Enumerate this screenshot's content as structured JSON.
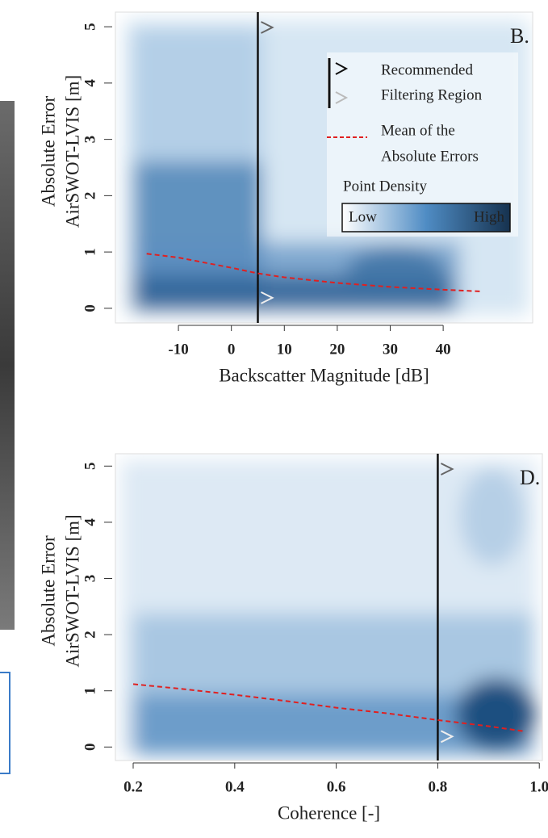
{
  "chart_data": [
    {
      "type": "density",
      "title": "B.",
      "xlabel": "Backscatter Magnitude [dB]",
      "ylabel": [
        "Absolute Error",
        "AirSWOT-LVIS [m]"
      ],
      "xlim": [
        -21.9,
        56.9
      ],
      "ylim": [
        -0.26,
        5.26
      ],
      "xticks": [
        -10,
        0,
        10,
        20,
        30,
        40
      ],
      "yticks": [
        0,
        1,
        2,
        3,
        4,
        5
      ],
      "threshold": 5,
      "mean_x": [
        -16,
        -10,
        0,
        5,
        10,
        20,
        30,
        40,
        47
      ],
      "mean_y": [
        0.97,
        0.9,
        0.72,
        0.62,
        0.55,
        0.45,
        0.38,
        0.33,
        0.3
      ],
      "mean_color": "#e02020",
      "legend": {
        "threshold_label": [
          "Recommended",
          "Filtering Region"
        ],
        "mean_label": [
          "Mean of the",
          "Absolute Errors"
        ],
        "density_title": "Point Density",
        "density_low": "Low",
        "density_high": "High"
      }
    },
    {
      "type": "density",
      "title": "D.",
      "xlabel": "Coherence [-]",
      "ylabel": [
        "Absolute Error",
        "AirSWOT-LVIS [m]"
      ],
      "xlim": [
        0.165,
        1.006
      ],
      "ylim": [
        -0.24,
        5.22
      ],
      "xticks": [
        0.2,
        0.4,
        0.6,
        0.8,
        {
          "value": 1,
          "label": "1.0"
        }
      ],
      "yticks": [
        0,
        1,
        2,
        3,
        4,
        5
      ],
      "threshold": 0.8,
      "mean_x": [
        0.2,
        0.3,
        0.4,
        0.5,
        0.6,
        0.7,
        0.8,
        0.9,
        0.97
      ],
      "mean_y": [
        1.12,
        1.03,
        0.93,
        0.82,
        0.7,
        0.6,
        0.48,
        0.37,
        0.28
      ],
      "mean_color": "#e02020"
    }
  ]
}
